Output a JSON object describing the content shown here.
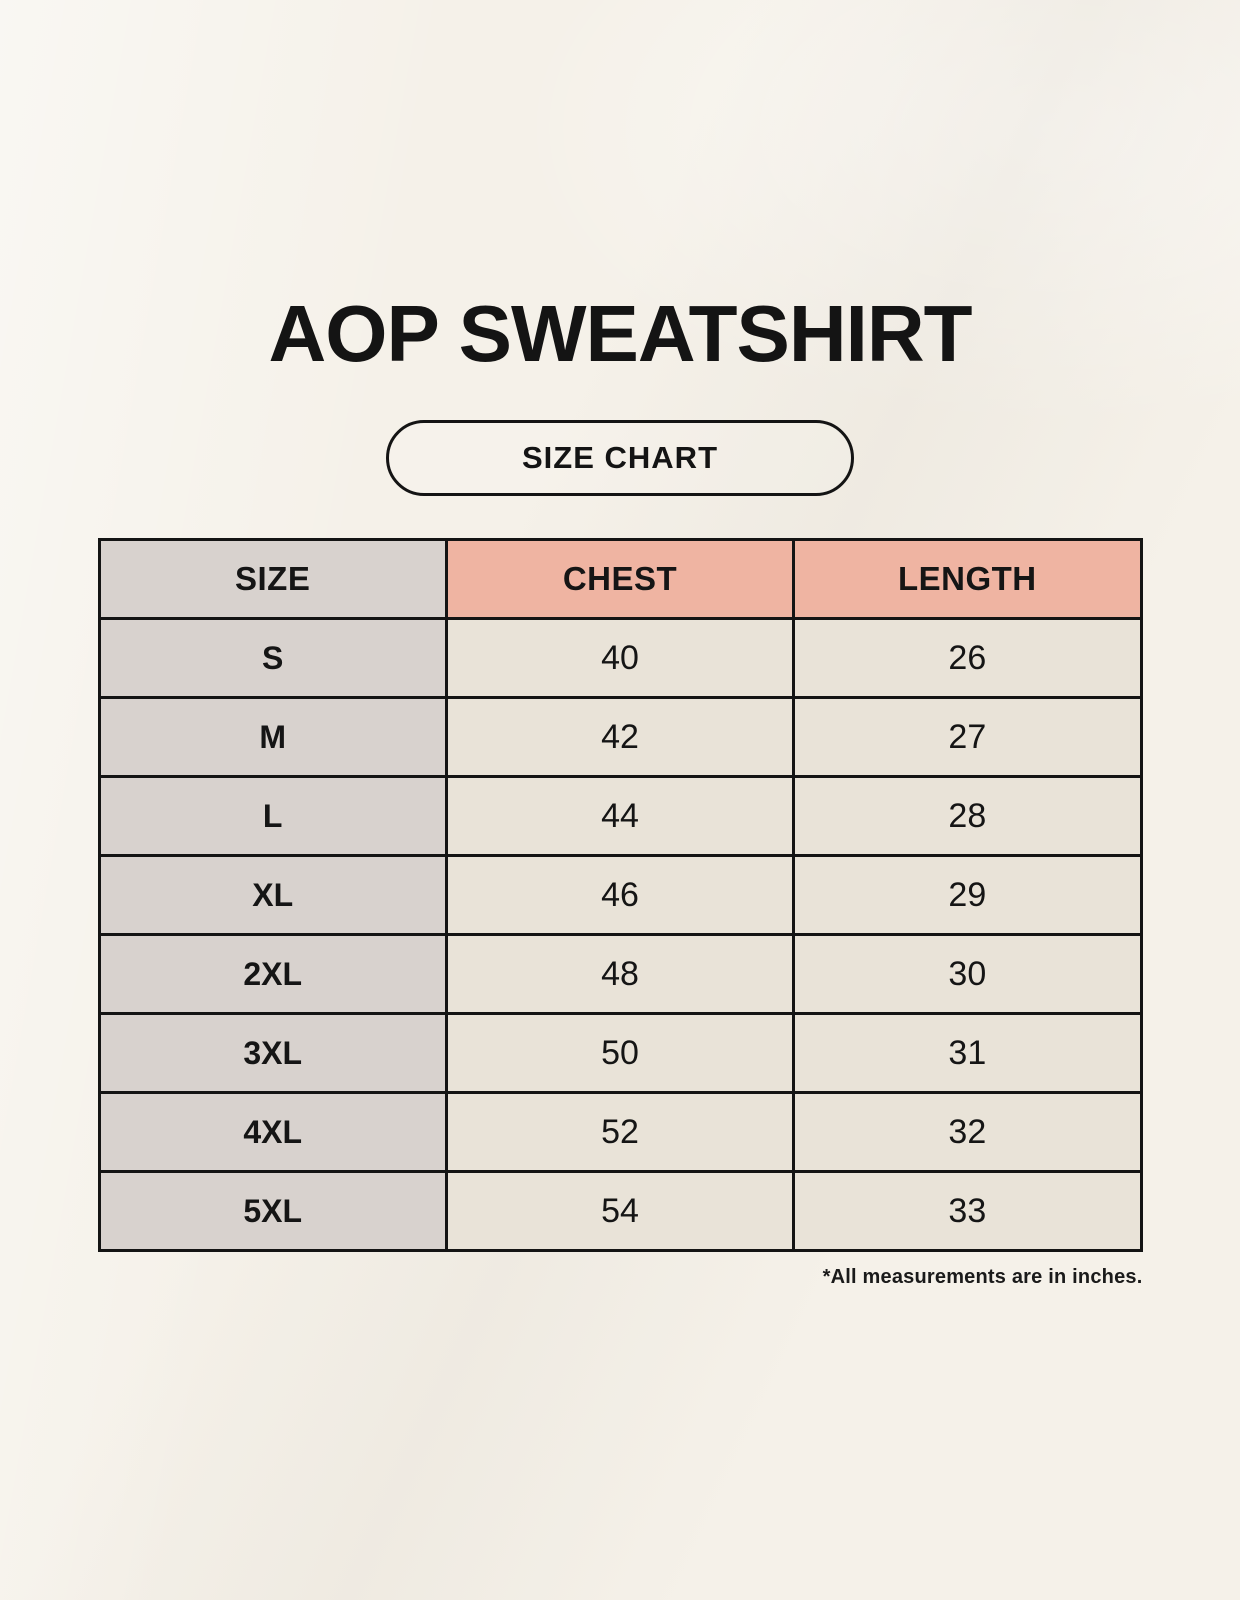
{
  "page": {
    "title": "AOP SWEATSHIRT",
    "badge_label": "SIZE CHART",
    "footnote": "*All measurements are in inches."
  },
  "table": {
    "columns": [
      "SIZE",
      "CHEST",
      "LENGTH"
    ],
    "rows": [
      {
        "size": "S",
        "chest": "40",
        "length": "26"
      },
      {
        "size": "M",
        "chest": "42",
        "length": "27"
      },
      {
        "size": "L",
        "chest": "44",
        "length": "28"
      },
      {
        "size": "XL",
        "chest": "46",
        "length": "29"
      },
      {
        "size": "2XL",
        "chest": "48",
        "length": "30"
      },
      {
        "size": "3XL",
        "chest": "50",
        "length": "31"
      },
      {
        "size": "4XL",
        "chest": "52",
        "length": "32"
      },
      {
        "size": "5XL",
        "chest": "54",
        "length": "33"
      }
    ]
  },
  "colors": {
    "background": "#f5f1e9",
    "header_accent": "#efb4a2",
    "size_column": "#d8d2ce",
    "value_cell": "#e9e3d8",
    "border": "#141414",
    "text": "#141414"
  },
  "chart_data": {
    "type": "table",
    "title": "AOP SWEATSHIRT",
    "subtitle": "SIZE CHART",
    "columns": [
      "SIZE",
      "CHEST",
      "LENGTH"
    ],
    "rows": [
      [
        "S",
        40,
        26
      ],
      [
        "M",
        42,
        27
      ],
      [
        "L",
        44,
        28
      ],
      [
        "XL",
        46,
        29
      ],
      [
        "2XL",
        48,
        30
      ],
      [
        "3XL",
        50,
        31
      ],
      [
        "4XL",
        52,
        32
      ],
      [
        "5XL",
        54,
        33
      ]
    ],
    "note": "*All measurements are in inches.",
    "units": "inches"
  }
}
